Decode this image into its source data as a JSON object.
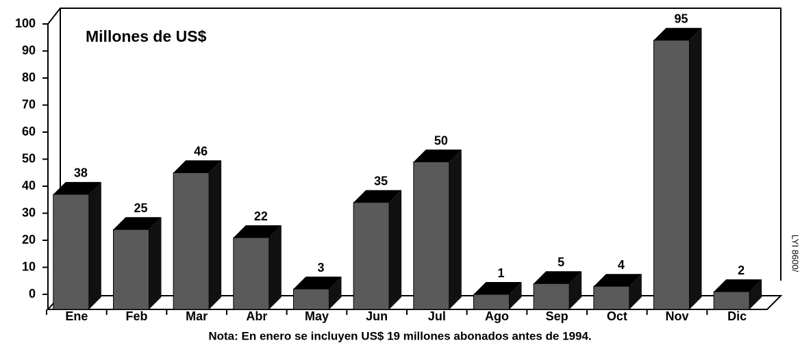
{
  "chart_data": {
    "type": "bar",
    "title": "Millones de US$",
    "categories": [
      "Ene",
      "Feb",
      "Mar",
      "Abr",
      "May",
      "Jun",
      "Jul",
      "Ago",
      "Sep",
      "Oct",
      "Nov",
      "Dic"
    ],
    "values": [
      38,
      25,
      46,
      22,
      3,
      35,
      50,
      1,
      5,
      4,
      95,
      2
    ],
    "color": "#5a5a5a",
    "ylim": [
      0,
      100
    ],
    "yticks": [
      0,
      10,
      20,
      30,
      40,
      50,
      60,
      70,
      80,
      90,
      100
    ],
    "note": "Nota: En enero se incluyen US$ 19 millones abonados antes de 1994.",
    "figure_id": "LYI 8600/"
  }
}
